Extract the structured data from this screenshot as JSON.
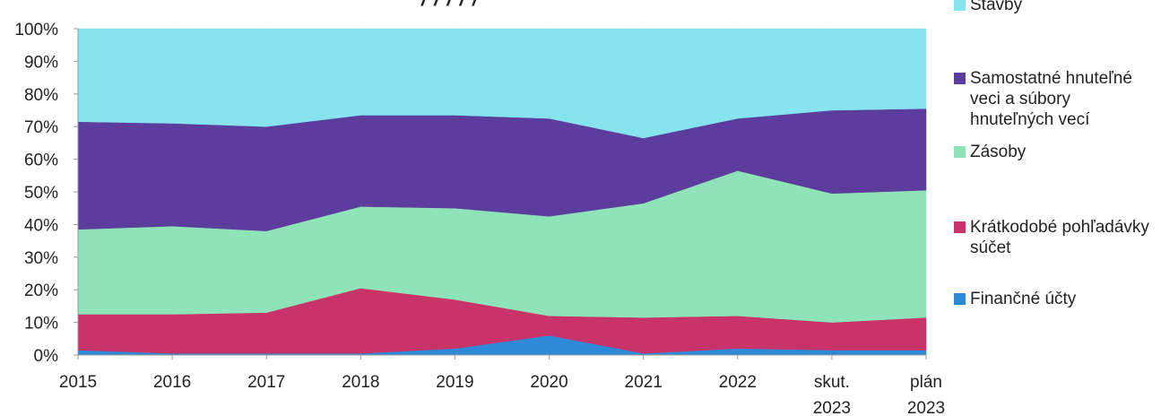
{
  "chart_data": {
    "type": "area",
    "stacked": true,
    "percent": true,
    "categories": [
      "2015",
      "2016",
      "2017",
      "2018",
      "2019",
      "2020",
      "2021",
      "2022",
      "skut. 2023",
      "plán 2023"
    ],
    "category_lines": [
      [
        "2015"
      ],
      [
        "2016"
      ],
      [
        "2017"
      ],
      [
        "2018"
      ],
      [
        "2019"
      ],
      [
        "2020"
      ],
      [
        "2021"
      ],
      [
        "2022"
      ],
      [
        "skut.",
        "2023"
      ],
      [
        "plán",
        "2023"
      ]
    ],
    "ylim": [
      0,
      100
    ],
    "yticks": [
      "0%",
      "10%",
      "20%",
      "30%",
      "40%",
      "50%",
      "60%",
      "70%",
      "80%",
      "90%",
      "100%"
    ],
    "series": [
      {
        "name": "Finančné účty",
        "color": "#2e8ad8",
        "values": [
          1.5,
          0.5,
          0.5,
          0.5,
          2.0,
          6.0,
          0.5,
          2.0,
          1.5,
          1.5
        ]
      },
      {
        "name": "Krátkodobé pohľadávky súčet",
        "color": "#c8336a",
        "values": [
          11.0,
          12.0,
          12.5,
          20.0,
          15.0,
          6.0,
          11.0,
          10.0,
          8.5,
          10.0
        ]
      },
      {
        "name": "Zásoby",
        "color": "#8fe3b8",
        "values": [
          26.0,
          27.0,
          25.0,
          25.0,
          28.0,
          30.5,
          35.0,
          44.5,
          39.5,
          39.0
        ]
      },
      {
        "name": "Samostatné hnuteľné veci a súbory hnuteľných vecí",
        "color": "#5c3d9e",
        "values": [
          33.0,
          31.5,
          32.0,
          28.0,
          28.5,
          30.0,
          20.0,
          16.0,
          25.5,
          25.0
        ]
      },
      {
        "name": "Stavby",
        "color": "#86e4ee",
        "values": [
          28.5,
          29.0,
          30.0,
          26.5,
          26.5,
          27.5,
          33.5,
          27.5,
          25.0,
          24.5
        ]
      }
    ],
    "legend_position": "right",
    "title_fragment": "/ / / / /",
    "grid": false
  },
  "legend": [
    {
      "label": "Stavby",
      "color": "#86e4ee"
    },
    {
      "label": "Samostatné hnuteľné veci a súbory hnuteľných vecí",
      "color": "#5c3d9e"
    },
    {
      "label": "Zásoby",
      "color": "#8fe3b8"
    },
    {
      "label": "Krátkodobé pohľadávky súčet",
      "color": "#c8336a"
    },
    {
      "label": "Finančné účty",
      "color": "#2e8ad8"
    }
  ]
}
